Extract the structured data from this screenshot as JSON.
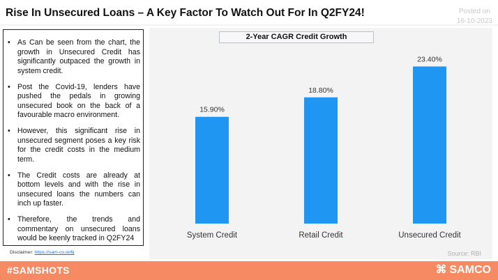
{
  "header": {
    "title": "Rise In Unsecured Loans – A Key Factor To Watch Out For In Q2FY24!",
    "posted_label": "Posted on",
    "posted_date": "16-10-2023"
  },
  "points": [
    "As Can be seen from the chart, the growth in Unsecured Credit has significantly outpaced the growth in system credit.",
    "Post the Covid-19, lenders have pushed the pedals in growing unsecured book on the back of a favourable macro environment.",
    "However, this significant rise in unsecured segment poses a key risk for the credit costs in the medium term.",
    "The Credit costs are already at bottom levels and with the rise in unsecured loans the numbers can inch up faster.",
    "Therefore, the trends and commentary on unsecured loans would be keenly tracked in Q2FY24"
  ],
  "bullet_glyph": "•",
  "disclaimer": {
    "label": "Disclaimer:",
    "link_text": "https://sam-co.in/6j"
  },
  "source": "Source: RBI",
  "footer": {
    "hashtag": "#SAMSHOTS",
    "brand": "SAMCO",
    "logo_icon": "samco-swirl-icon",
    "background": "#f58a63"
  },
  "chart_data": {
    "type": "bar",
    "title": "2-Year CAGR Credit Growth",
    "categories": [
      "System Credit",
      "Retail Credit",
      "Unsecured Credit"
    ],
    "values": [
      15.9,
      18.8,
      23.4
    ],
    "value_labels": [
      "15.90%",
      "18.80%",
      "23.40%"
    ],
    "ylim": [
      0,
      25
    ],
    "bar_color": "#1f97f2",
    "grid": false,
    "legend": "none"
  }
}
